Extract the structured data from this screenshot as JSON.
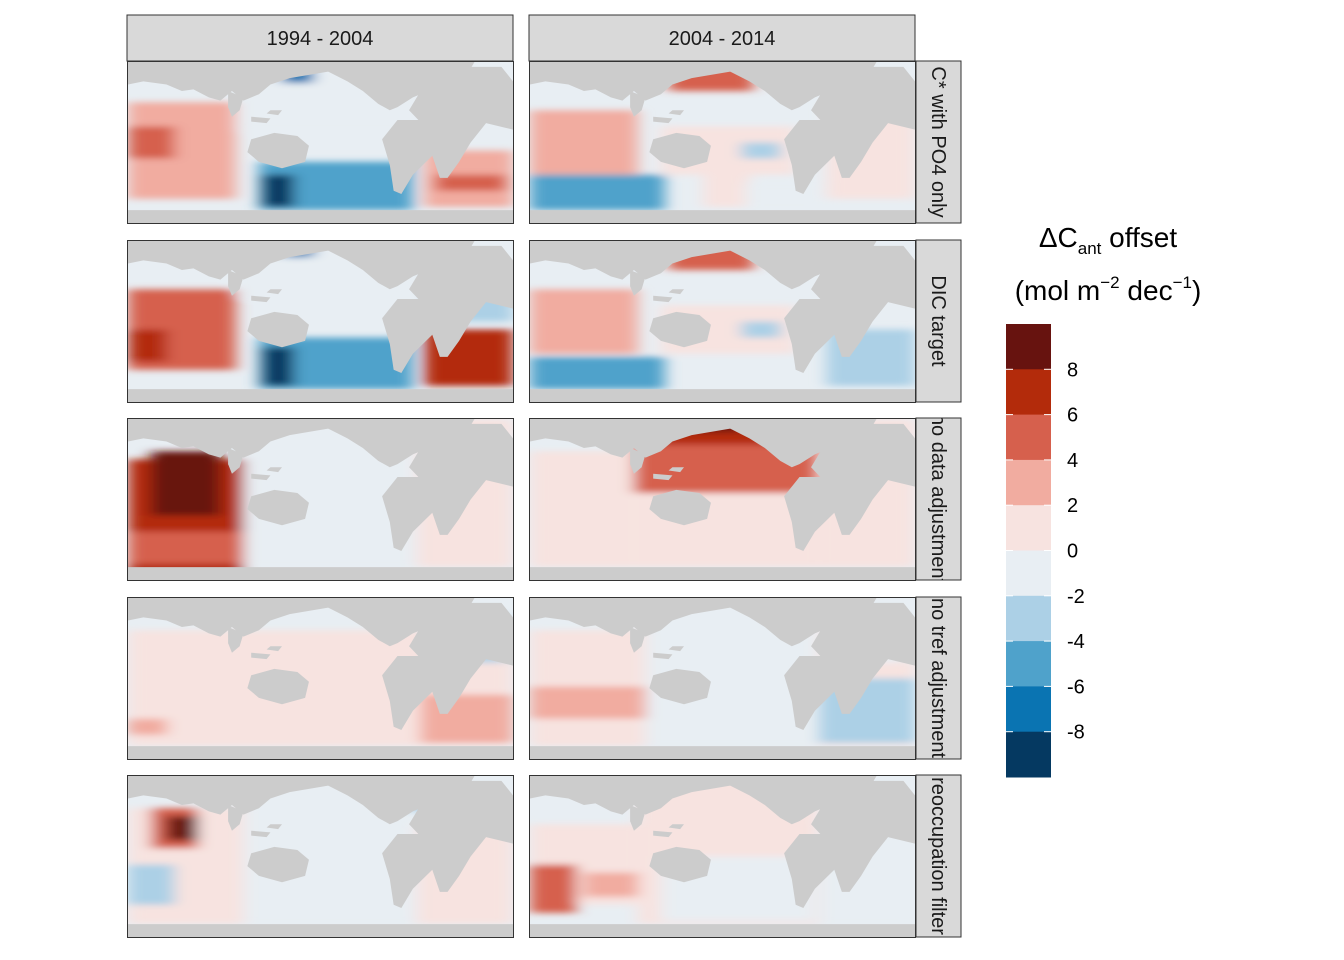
{
  "chart_data": {
    "type": "heatmap",
    "layout": "faceted grid of global ocean maps",
    "columns": [
      "1994 - 2004",
      "2004 - 2014"
    ],
    "rows": [
      "C* with PO4 only",
      "DIC target",
      "no data adjustment",
      "no tref adjustment",
      "reoccupation filter"
    ],
    "legend": {
      "title_prefix": "ΔC",
      "title_sub": "ant",
      "title_suffix": " offset",
      "unit_open": "(mol m",
      "unit_exp1": "−2",
      "unit_mid": " dec",
      "unit_exp2": "−1",
      "unit_close": ")",
      "tick_labels": [
        "8",
        "6",
        "4",
        "2",
        "0",
        "-2",
        "-4",
        "-6",
        "-8"
      ],
      "bins": [
        {
          "range": [
            8,
            10
          ],
          "color": "#67130f"
        },
        {
          "range": [
            6,
            8
          ],
          "color": "#b32b0b"
        },
        {
          "range": [
            4,
            6
          ],
          "color": "#d6604d"
        },
        {
          "range": [
            2,
            4
          ],
          "color": "#f1aca0"
        },
        {
          "range": [
            0,
            2
          ],
          "color": "#f7e3e0"
        },
        {
          "range": [
            -2,
            0
          ],
          "color": "#e8eef3"
        },
        {
          "range": [
            -4,
            -2
          ],
          "color": "#acd0e6"
        },
        {
          "range": [
            -6,
            -4
          ],
          "color": "#4fa2cb"
        },
        {
          "range": [
            -8,
            -6
          ],
          "color": "#0a74b2"
        },
        {
          "range": [
            -10,
            -8
          ],
          "color": "#053961"
        }
      ]
    },
    "land_color": "#cccccc",
    "strip_color": "#d9d9d9"
  }
}
